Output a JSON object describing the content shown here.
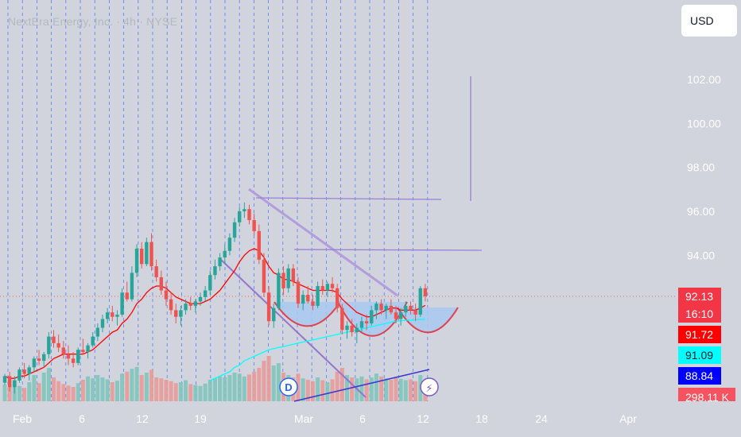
{
  "header": {
    "symbol_line": "NextEra Energy, Inc. · 4h · NYSE"
  },
  "currency_button": "USD",
  "price_labels": [
    {
      "value": "92.13",
      "bg": "#f23645",
      "fg": "#ffffff"
    },
    {
      "value": "16:10",
      "bg": "#f23645",
      "fg": "#ffffff"
    },
    {
      "value": "91.72",
      "bg": "#ff0000",
      "fg": "#ffffff"
    },
    {
      "value": "91.09",
      "bg": "#00ffff",
      "fg": "#131722"
    },
    {
      "value": "88.84",
      "bg": "#0000ff",
      "fg": "#ffffff"
    },
    {
      "value": "298.11 K",
      "bg": "#f7525f",
      "fg": "#ffffff"
    }
  ],
  "markers": {
    "dividends": "D",
    "earnings": "⚡"
  },
  "colors": {
    "up": "#26a69a",
    "down": "#ef5350",
    "ma_fast": "#ff0000",
    "ma_slow": "#00ffff",
    "trendline": "#9b7fd4",
    "cup": "#a8c8f0"
  },
  "chart_data": {
    "type": "candlestick",
    "y_ticks": [
      "94.00",
      "96.00",
      "98.00",
      "100.00",
      "102.00"
    ],
    "x_ticks": [
      "Feb",
      "6",
      "12",
      "19",
      "Mar",
      "6",
      "12",
      "18",
      "24",
      "Apr"
    ],
    "y_range": [
      88.5,
      103.0
    ],
    "candles": [
      [
        88.2,
        88.6,
        88.1,
        88.5
      ],
      [
        88.5,
        88.7,
        87.8,
        88.0
      ],
      [
        88.0,
        88.5,
        87.7,
        88.3
      ],
      [
        88.3,
        88.9,
        88.2,
        88.8
      ],
      [
        88.8,
        89.1,
        88.4,
        88.6
      ],
      [
        88.6,
        89.0,
        88.3,
        88.9
      ],
      [
        88.9,
        89.4,
        88.7,
        89.3
      ],
      [
        89.3,
        89.7,
        89.0,
        89.2
      ],
      [
        89.2,
        89.6,
        88.9,
        89.5
      ],
      [
        89.5,
        90.5,
        89.3,
        90.3
      ],
      [
        90.3,
        90.6,
        89.8,
        90.0
      ],
      [
        90.0,
        90.4,
        89.6,
        89.8
      ],
      [
        89.8,
        90.1,
        89.3,
        89.5
      ],
      [
        89.5,
        89.9,
        89.0,
        89.3
      ],
      [
        89.3,
        89.6,
        88.9,
        89.1
      ],
      [
        89.1,
        89.8,
        89.0,
        89.7
      ],
      [
        89.7,
        90.2,
        89.5,
        89.6
      ],
      [
        89.6,
        90.0,
        89.3,
        89.9
      ],
      [
        89.9,
        90.5,
        89.8,
        90.3
      ],
      [
        90.3,
        90.9,
        90.1,
        90.7
      ],
      [
        90.7,
        91.3,
        90.5,
        91.1
      ],
      [
        91.1,
        91.6,
        90.9,
        91.4
      ],
      [
        91.4,
        91.7,
        91.0,
        91.2
      ],
      [
        91.2,
        91.5,
        90.8,
        91.3
      ],
      [
        91.3,
        92.5,
        91.2,
        92.3
      ],
      [
        92.3,
        92.8,
        91.9,
        92.0
      ],
      [
        92.0,
        93.5,
        91.9,
        93.2
      ],
      [
        93.2,
        94.5,
        93.0,
        94.3
      ],
      [
        94.3,
        94.6,
        93.4,
        93.6
      ],
      [
        93.6,
        94.8,
        93.5,
        94.6
      ],
      [
        94.6,
        95.0,
        93.3,
        93.5
      ],
      [
        93.5,
        93.8,
        92.8,
        93.0
      ],
      [
        93.0,
        93.3,
        92.2,
        92.4
      ],
      [
        92.4,
        92.8,
        91.7,
        92.0
      ],
      [
        92.0,
        92.3,
        91.3,
        91.5
      ],
      [
        91.5,
        91.8,
        90.9,
        91.2
      ],
      [
        91.2,
        91.7,
        90.8,
        91.5
      ],
      [
        91.5,
        92.0,
        91.3,
        91.8
      ],
      [
        91.8,
        92.1,
        91.5,
        91.7
      ],
      [
        91.7,
        92.0,
        91.4,
        91.9
      ],
      [
        91.9,
        92.3,
        91.7,
        92.1
      ],
      [
        92.1,
        92.6,
        91.9,
        92.4
      ],
      [
        92.4,
        93.3,
        92.2,
        93.1
      ],
      [
        93.1,
        93.8,
        92.9,
        93.5
      ],
      [
        93.5,
        94.1,
        93.3,
        93.9
      ],
      [
        93.9,
        94.5,
        93.6,
        94.2
      ],
      [
        94.2,
        95.0,
        94.0,
        94.8
      ],
      [
        94.8,
        95.7,
        94.6,
        95.5
      ],
      [
        95.5,
        96.2,
        95.3,
        96.0
      ],
      [
        96.0,
        96.4,
        95.7,
        96.1
      ],
      [
        96.1,
        96.3,
        95.4,
        95.6
      ],
      [
        95.6,
        95.9,
        94.9,
        95.1
      ],
      [
        95.1,
        95.4,
        93.6,
        93.8
      ],
      [
        93.8,
        94.1,
        92.1,
        92.3
      ],
      [
        92.3,
        92.6,
        90.8,
        91.0
      ],
      [
        91.0,
        91.8,
        90.7,
        91.6
      ],
      [
        91.6,
        93.4,
        91.5,
        93.2
      ],
      [
        93.2,
        93.5,
        92.2,
        92.5
      ],
      [
        92.5,
        93.6,
        92.3,
        93.4
      ],
      [
        93.4,
        93.6,
        92.6,
        92.8
      ],
      [
        92.8,
        93.0,
        91.6,
        91.8
      ],
      [
        91.8,
        92.4,
        91.5,
        92.2
      ],
      [
        92.2,
        92.6,
        91.8,
        91.9
      ],
      [
        91.9,
        92.2,
        91.5,
        91.7
      ],
      [
        91.7,
        92.8,
        91.6,
        92.6
      ],
      [
        92.6,
        92.9,
        92.2,
        92.4
      ],
      [
        92.4,
        92.8,
        92.1,
        92.7
      ],
      [
        92.7,
        93.0,
        92.3,
        92.5
      ],
      [
        92.5,
        92.7,
        91.4,
        91.6
      ],
      [
        91.6,
        91.8,
        90.4,
        90.6
      ],
      [
        90.6,
        91.0,
        90.2,
        90.8
      ],
      [
        90.8,
        91.1,
        90.3,
        90.5
      ],
      [
        90.5,
        90.9,
        90.0,
        90.7
      ],
      [
        90.7,
        91.2,
        90.5,
        91.0
      ],
      [
        91.0,
        91.3,
        90.6,
        90.9
      ],
      [
        90.9,
        91.7,
        90.8,
        91.5
      ],
      [
        91.5,
        91.9,
        91.1,
        91.8
      ],
      [
        91.8,
        92.0,
        91.3,
        91.5
      ],
      [
        91.5,
        91.8,
        91.1,
        91.7
      ],
      [
        91.7,
        92.0,
        91.3,
        91.4
      ],
      [
        91.4,
        91.7,
        90.9,
        91.1
      ],
      [
        91.1,
        91.6,
        90.8,
        91.4
      ],
      [
        91.4,
        91.9,
        91.2,
        91.7
      ],
      [
        91.7,
        91.9,
        91.3,
        91.5
      ],
      [
        91.5,
        91.8,
        91.0,
        91.3
      ],
      [
        91.3,
        92.6,
        91.2,
        92.5
      ],
      [
        92.5,
        92.7,
        91.9,
        92.13
      ]
    ],
    "volume": [
      0.35,
      0.3,
      0.45,
      0.32,
      0.28,
      0.4,
      0.55,
      0.38,
      0.6,
      0.7,
      0.5,
      0.42,
      0.36,
      0.33,
      0.3,
      0.38,
      0.45,
      0.52,
      0.48,
      0.55,
      0.5,
      0.46,
      0.4,
      0.43,
      0.58,
      0.62,
      0.68,
      0.72,
      0.55,
      0.6,
      0.66,
      0.5,
      0.48,
      0.45,
      0.42,
      0.38,
      0.4,
      0.44,
      0.36,
      0.34,
      0.32,
      0.37,
      0.45,
      0.48,
      0.52,
      0.5,
      0.55,
      0.6,
      0.58,
      0.52,
      0.56,
      0.62,
      0.7,
      0.85,
      0.95,
      0.75,
      0.8,
      0.6,
      0.55,
      0.5,
      0.58,
      0.48,
      0.45,
      0.42,
      0.5,
      0.44,
      0.4,
      0.46,
      0.62,
      0.7,
      0.55,
      0.5,
      0.48,
      0.52,
      0.46,
      0.5,
      0.58,
      0.52,
      0.48,
      0.45,
      0.5,
      0.47,
      0.44,
      0.46,
      0.42,
      0.55,
      0.45
    ],
    "ma_fast": [
      88.5,
      88.4,
      88.4,
      88.5,
      88.5,
      88.6,
      88.7,
      88.8,
      88.9,
      89.1,
      89.3,
      89.4,
      89.5,
      89.5,
      89.5,
      89.5,
      89.5,
      89.6,
      89.7,
      89.9,
      90.1,
      90.3,
      90.5,
      90.6,
      90.9,
      91.1,
      91.4,
      91.8,
      92.0,
      92.3,
      92.5,
      92.6,
      92.6,
      92.5,
      92.3,
      92.1,
      92.0,
      91.9,
      91.8,
      91.8,
      91.8,
      91.9,
      92.0,
      92.2,
      92.4,
      92.7,
      93.0,
      93.3,
      93.7,
      94.0,
      94.2,
      94.3,
      94.2,
      93.9,
      93.5,
      93.2,
      93.1,
      92.9,
      92.9,
      92.8,
      92.7,
      92.6,
      92.5,
      92.4,
      92.4,
      92.4,
      92.4,
      92.4,
      92.3,
      92.0,
      91.8,
      91.6,
      91.4,
      91.3,
      91.2,
      91.2,
      91.3,
      91.4,
      91.5,
      91.6,
      91.6,
      91.5,
      91.5,
      91.5,
      91.5,
      91.6,
      91.72
    ],
    "ma_slow": [
      null,
      null,
      null,
      null,
      null,
      null,
      null,
      null,
      null,
      null,
      null,
      null,
      null,
      null,
      null,
      null,
      null,
      null,
      null,
      null,
      null,
      null,
      null,
      null,
      null,
      null,
      null,
      null,
      null,
      null,
      null,
      null,
      null,
      null,
      null,
      null,
      null,
      null,
      null,
      null,
      null,
      null,
      88.3,
      88.4,
      88.5,
      88.6,
      88.7,
      88.9,
      89.0,
      89.2,
      89.3,
      89.4,
      89.5,
      89.6,
      89.7,
      89.75,
      89.8,
      89.85,
      89.9,
      89.95,
      90.0,
      90.05,
      90.1,
      90.15,
      90.2,
      90.25,
      90.3,
      90.35,
      90.4,
      90.45,
      90.5,
      90.55,
      90.6,
      90.65,
      90.7,
      90.75,
      90.8,
      90.85,
      90.9,
      90.95,
      91.0,
      91.02,
      91.04,
      91.05,
      91.07,
      91.08,
      91.09
    ]
  }
}
